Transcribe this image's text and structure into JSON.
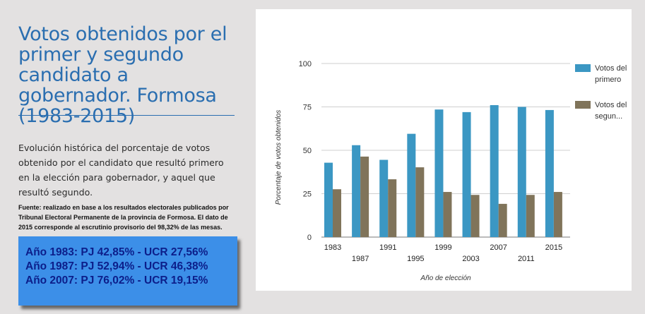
{
  "title": "Votos obtenidos por el primer y segundo candidato a gobernador. Formosa (1983-2015)",
  "description": "Evolución histórica del porcentaje de votos obtenido por el candidato que resultó primero en la elección para gobernador, y aquel que resultó segundo.",
  "source": "Fuente: realizado en base a los resultados electorales publicados por Tribunal Electoral Permanente de la provincia de Formosa. El dato de 2015 corresponde al escrutinio provisorio del 98,32% de las mesas.",
  "highlights": [
    "Año 1983: PJ 42,85% - UCR 27,56%",
    "Año 1987: PJ 52,94% - UCR 46,38%",
    "Año 2007: PJ 76,02% - UCR 19,15%"
  ],
  "legend": [
    {
      "label": "Votos del primero"
    },
    {
      "label": "Votos del segun..."
    }
  ],
  "chart_data": {
    "type": "bar",
    "categories": [
      "1983",
      "1987",
      "1991",
      "1995",
      "1999",
      "2003",
      "2007",
      "2011",
      "2015"
    ],
    "series": [
      {
        "name": "Votos del primero",
        "color": "#3b97c3",
        "values": [
          42.85,
          52.94,
          44.5,
          59.5,
          73.5,
          72,
          76.02,
          75,
          73.2
        ]
      },
      {
        "name": "Votos del segun...",
        "color": "#80745a",
        "values": [
          27.56,
          46.38,
          33.3,
          40.2,
          26,
          24.3,
          19.15,
          24.3,
          26
        ]
      }
    ],
    "xlabel": "Año de elección",
    "ylabel": "Porcentaje de votos obtenidos",
    "ylim": [
      0,
      100
    ],
    "yticks": [
      0,
      25,
      50,
      75,
      100
    ],
    "grid": true,
    "legend_position": "right"
  }
}
